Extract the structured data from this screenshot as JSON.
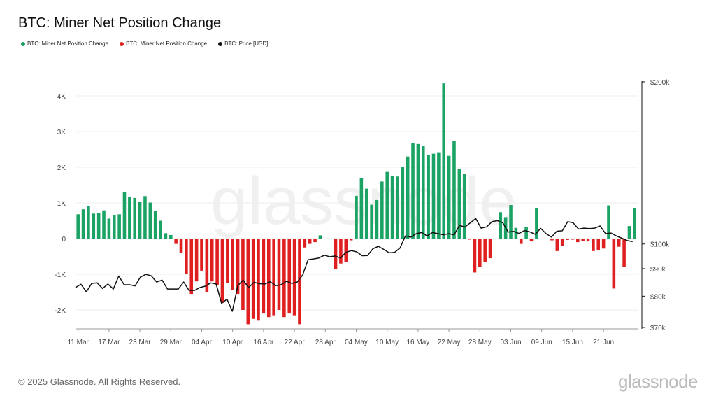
{
  "title": "BTC: Miner Net Position Change",
  "legend": [
    {
      "label": "BTC: Miner Net Position Change",
      "color": "#1aa364"
    },
    {
      "label": "BTC: Miner Net Position Change",
      "color": "#e02020"
    },
    {
      "label": "BTC: Price [USD]",
      "color": "#111111"
    }
  ],
  "watermark": "glassnode",
  "footer": "© 2025 Glassnode. All Rights Reserved.",
  "brand": "glassnode",
  "chart_data": {
    "type": "bar",
    "title": "BTC: Miner Net Position Change",
    "x_tick_labels": [
      "11 Mar",
      "17 Mar",
      "23 Mar",
      "29 Mar",
      "04 Apr",
      "10 Apr",
      "16 Apr",
      "22 Apr",
      "28 Apr",
      "04 May",
      "10 May",
      "16 May",
      "22 May",
      "28 May",
      "03 Jun",
      "09 Jun",
      "15 Jun",
      "21 Jun"
    ],
    "y_left_ticks": [
      {
        "value": 4000,
        "label": "4K"
      },
      {
        "value": 3000,
        "label": "3K"
      },
      {
        "value": 2000,
        "label": "2K"
      },
      {
        "value": 1000,
        "label": "1K"
      },
      {
        "value": 0,
        "label": "0"
      },
      {
        "value": -1000,
        "label": "-1K"
      },
      {
        "value": -2000,
        "label": "-2K"
      }
    ],
    "y_left_range": [
      -2450,
      4400
    ],
    "y_right_ticks": [
      {
        "value": 200000,
        "label": "$200k"
      },
      {
        "value": 100000,
        "label": "$100k"
      },
      {
        "value": 90000,
        "label": "$90k"
      },
      {
        "value": 80000,
        "label": "$80k"
      },
      {
        "value": 70000,
        "label": "$70k"
      }
    ],
    "y_right_scale": "log",
    "y_right_range": [
      70000,
      200000
    ],
    "grid": true,
    "positive_color": "#1aa364",
    "negative_color": "#e02020",
    "price_color": "#111111",
    "values": [
      680,
      820,
      920,
      700,
      720,
      790,
      560,
      650,
      680,
      1300,
      1170,
      1140,
      1020,
      1190,
      1010,
      780,
      500,
      150,
      100,
      -150,
      -400,
      -1000,
      -1550,
      -1200,
      -900,
      -1500,
      -1200,
      -1300,
      -1800,
      -1250,
      -1450,
      -1550,
      -2000,
      -2400,
      -2250,
      -2300,
      -2100,
      -2200,
      -2150,
      -2000,
      -2200,
      -2100,
      -2150,
      -2400,
      -250,
      -150,
      -100,
      90,
      0,
      0,
      -850,
      -700,
      -650,
      -50,
      1200,
      1700,
      1400,
      950,
      1080,
      1600,
      1870,
      1760,
      1740,
      2000,
      2300,
      2680,
      2650,
      2600,
      2350,
      2380,
      2420,
      4350,
      2320,
      2730,
      1960,
      1820,
      -30,
      -950,
      -800,
      -650,
      -550,
      0,
      740,
      600,
      940,
      300,
      -150,
      330,
      -80,
      850,
      0,
      0,
      -50,
      -350,
      -200,
      -40,
      -30,
      -100,
      -70,
      -80,
      -350,
      -320,
      -280,
      930,
      -1400,
      -230,
      -800,
      350,
      860
    ],
    "price": [
      83000,
      84200,
      81500,
      84500,
      84700,
      82700,
      84300,
      82500,
      87200,
      84000,
      84000,
      83600,
      86800,
      87800,
      87300,
      85000,
      85700,
      82500,
      82500,
      82500,
      85000,
      82000,
      82000,
      83000,
      83500,
      84700,
      84300,
      77600,
      79000,
      75000,
      83700,
      85700,
      83000,
      84900,
      84400,
      84300,
      85100,
      83700,
      84000,
      85300,
      84500,
      85000,
      87600,
      93500,
      93800,
      94200,
      95300,
      94700,
      95000,
      94200,
      96500,
      97200,
      96700,
      95100,
      95200,
      98000,
      99000,
      97700,
      96300,
      96500,
      98300,
      103500,
      103000,
      104500,
      105000,
      103500,
      105000,
      104500,
      104000,
      104500,
      104000,
      108300,
      107500,
      109500,
      111500,
      107000,
      107600,
      110000,
      110500,
      109500,
      105200,
      105500,
      104600,
      105900,
      105300,
      104200,
      106900,
      104500,
      103000,
      105600,
      105800,
      110000,
      109500,
      106600,
      107000,
      106800,
      107000,
      108000,
      104500,
      104800,
      103500,
      102500,
      101500,
      101000
    ],
    "price_x_step": 1.05
  }
}
